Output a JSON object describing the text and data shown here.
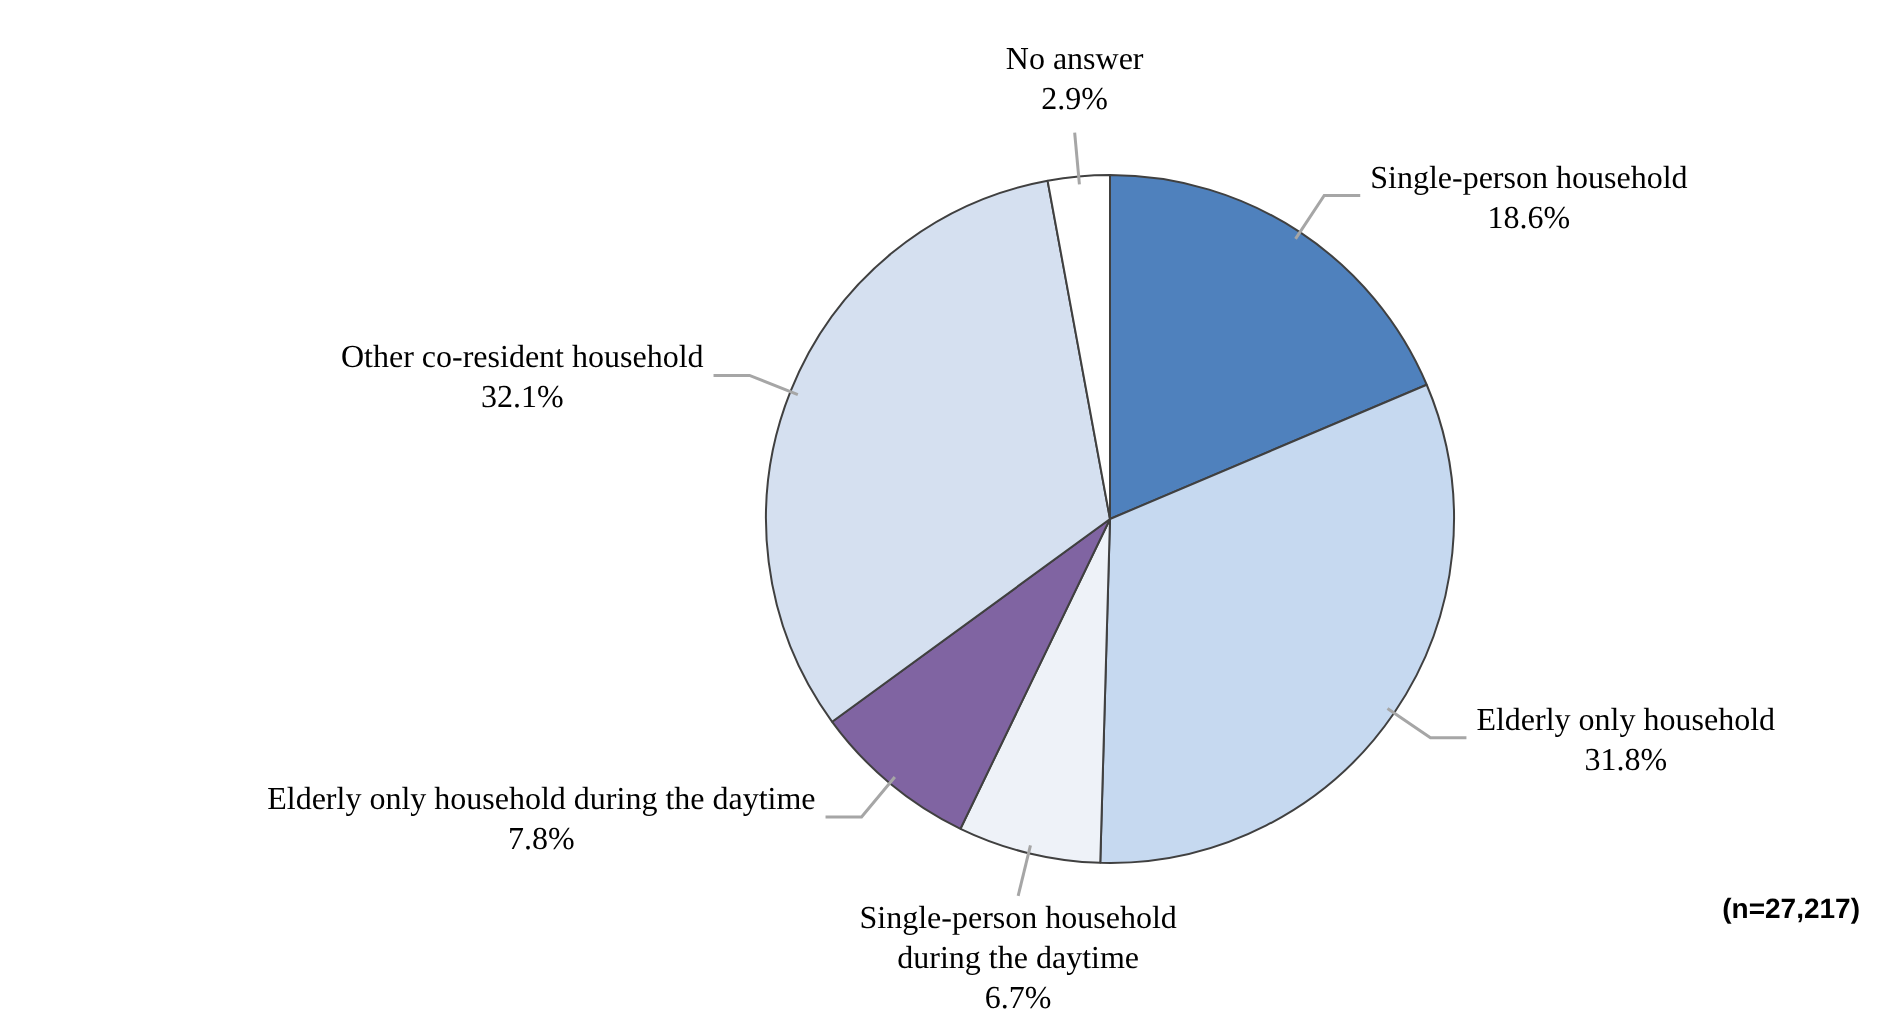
{
  "chart_data": {
    "type": "pie",
    "categories": [
      "Single-person household",
      "Elderly only household",
      "Single-person household during the daytime",
      "Elderly only household during the daytime",
      "Other co-resident household",
      "No answer"
    ],
    "values": [
      18.6,
      31.8,
      6.7,
      7.8,
      32.1,
      2.9
    ],
    "colors": [
      "#4f81bd",
      "#c6d9f0",
      "#eef2f8",
      "#8064a2",
      "#d5e0f0",
      "#ffffff"
    ],
    "value_labels": [
      "18.6%",
      "31.8%",
      "6.7%",
      "7.8%",
      "32.1%",
      "2.9%"
    ],
    "legend": false,
    "annotations": [
      "(n=27,217)"
    ]
  }
}
